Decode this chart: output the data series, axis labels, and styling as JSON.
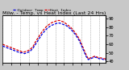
{
  "title": "Milw. - Temp. vs Heat Index (Last 24 Hrs)",
  "line1_label": "Outdoor Temp",
  "line2_label": "Heat Index",
  "line1_color": "#0000dd",
  "line2_color": "#dd0000",
  "background_color": "#ffffff",
  "fig_bg": "#c8c8c8",
  "ylim": [
    38,
    94
  ],
  "ytick_labels": [
    "90",
    "80",
    "70",
    "60",
    "50",
    "40"
  ],
  "ytick_vals": [
    90,
    80,
    70,
    60,
    50,
    40
  ],
  "num_points": 48,
  "temp_values": [
    58,
    57,
    56,
    55,
    54,
    53,
    52,
    51,
    50,
    50,
    49,
    50,
    51,
    53,
    56,
    60,
    64,
    68,
    72,
    75,
    78,
    80,
    82,
    83,
    84,
    85,
    85,
    84,
    83,
    82,
    80,
    78,
    75,
    72,
    68,
    64,
    58,
    52,
    46,
    42,
    43,
    44,
    45,
    44,
    43,
    43,
    42,
    42
  ],
  "heat_values": [
    60,
    59,
    58,
    57,
    56,
    55,
    54,
    53,
    52,
    51,
    51,
    52,
    53,
    55,
    58,
    63,
    67,
    71,
    75,
    78,
    81,
    83,
    85,
    86,
    87,
    88,
    88,
    87,
    86,
    84,
    82,
    80,
    77,
    74,
    70,
    66,
    60,
    54,
    48,
    43,
    44,
    45,
    46,
    45,
    44,
    44,
    43,
    43
  ],
  "title_fontsize": 4.5,
  "tick_fontsize": 4,
  "grid_color": "#888888",
  "line_width": 0.9,
  "xtick_every": 4
}
